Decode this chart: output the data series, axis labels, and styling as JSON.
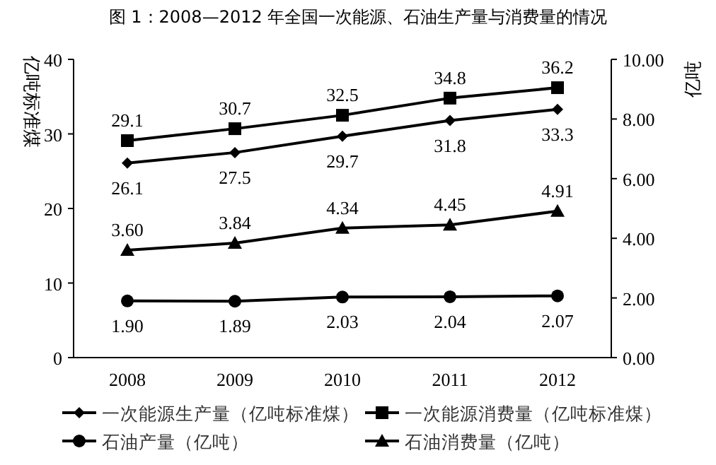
{
  "chart_data": {
    "type": "line",
    "title": "图 1：2008—2012 年全国一次能源、石油生产量与消费量的情况",
    "ylabel": "亿吨标准煤",
    "y2label": "亿吨",
    "categories": [
      "2008",
      "2009",
      "2010",
      "2011",
      "2012"
    ],
    "series": [
      {
        "name": "一次能源生产量（亿吨标准煤）",
        "color": "#000000",
        "marker": "diamond",
        "values": [
          26.1,
          27.5,
          29.7,
          31.8,
          33.3
        ]
      },
      {
        "name": "一次能源消费量（亿吨标准煤）",
        "color": "#000000",
        "marker": "square",
        "values": [
          29.1,
          30.7,
          32.5,
          34.8,
          36.2
        ]
      },
      {
        "name": "石油产量（亿吨）",
        "color": "#000000",
        "marker": "circle",
        "axis": "y2",
        "values": [
          1.9,
          1.89,
          2.03,
          2.04,
          2.07
        ],
        "value_labels": [
          "1.90",
          "1.89",
          "2.03",
          "2.04",
          "2.07"
        ]
      },
      {
        "name": "石油消费量（亿吨）",
        "color": "#000000",
        "marker": "triangle",
        "axis": "y2",
        "values": [
          3.6,
          3.84,
          4.34,
          4.45,
          4.91
        ],
        "value_labels": [
          "3.60",
          "3.84",
          "4.34",
          "4.45",
          "4.91"
        ]
      }
    ],
    "ylim": [
      0,
      40
    ],
    "yticks": [
      0,
      10,
      20,
      30,
      40
    ],
    "y2lim": [
      0,
      10
    ],
    "y2ticks": [
      {
        "value": 0,
        "label": "0.00"
      },
      {
        "value": 2,
        "label": "2.00"
      },
      {
        "value": 4,
        "label": "4.00"
      },
      {
        "value": 6,
        "label": "6.00"
      },
      {
        "value": 8,
        "label": "8.00"
      },
      {
        "value": 10,
        "label": "10.00"
      }
    ],
    "data_labels": true,
    "legend": "bottom",
    "grid": false,
    "line_style": "solid"
  }
}
